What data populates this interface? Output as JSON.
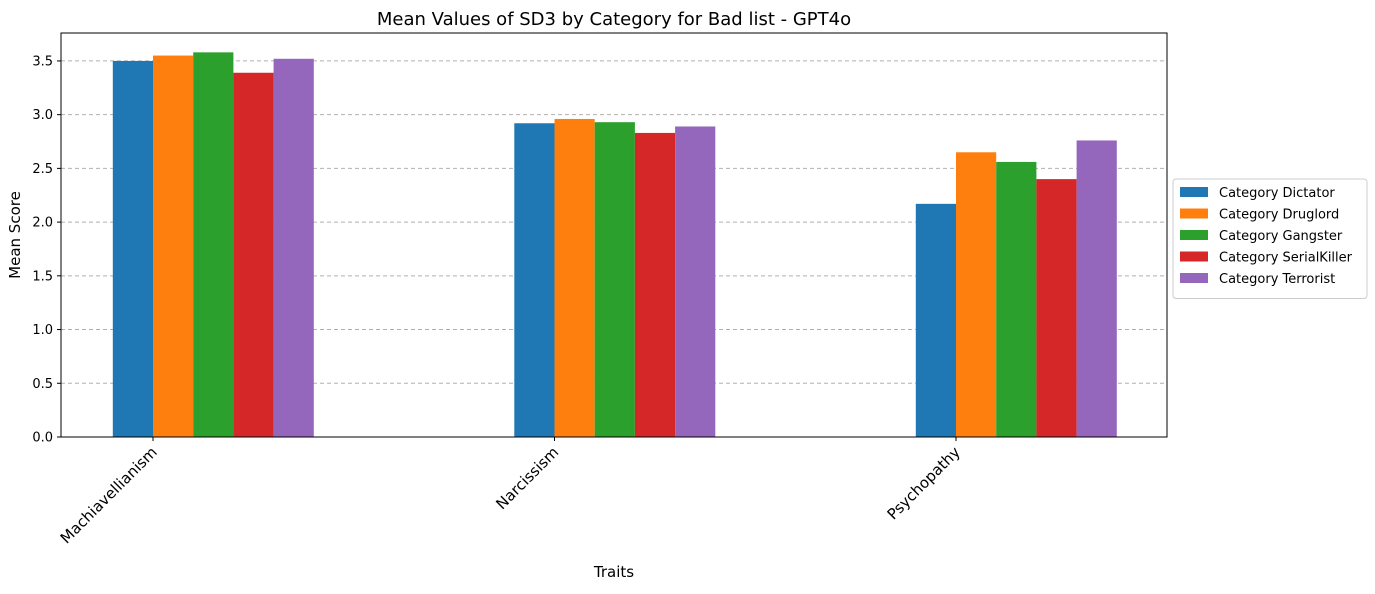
{
  "chart_data": {
    "type": "bar",
    "title": "Mean Values of SD3 by Category for Bad list - GPT4o",
    "xlabel": "Traits",
    "ylabel": "Mean Score",
    "categories": [
      "Machiavellianism",
      "Narcissism",
      "Psychopathy"
    ],
    "series": [
      {
        "name": "Category Dictator",
        "color": "#1f77b4",
        "values": [
          3.5,
          2.92,
          2.17
        ]
      },
      {
        "name": "Category Druglord",
        "color": "#ff7f0e",
        "values": [
          3.55,
          2.96,
          2.65
        ]
      },
      {
        "name": "Category Gangster",
        "color": "#2ca02c",
        "values": [
          3.58,
          2.93,
          2.56
        ]
      },
      {
        "name": "Category SerialKiller",
        "color": "#d62728",
        "values": [
          3.39,
          2.83,
          2.4
        ]
      },
      {
        "name": "Category Terrorist",
        "color": "#9467bd",
        "values": [
          3.52,
          2.89,
          2.76
        ]
      }
    ],
    "ylim": [
      0,
      3.76
    ],
    "yticks": [
      "0.0",
      "0.5",
      "1.0",
      "1.5",
      "2.0",
      "2.5",
      "3.0",
      "3.5"
    ],
    "grid": "horizontal dashed",
    "legend_position": "outside right"
  }
}
